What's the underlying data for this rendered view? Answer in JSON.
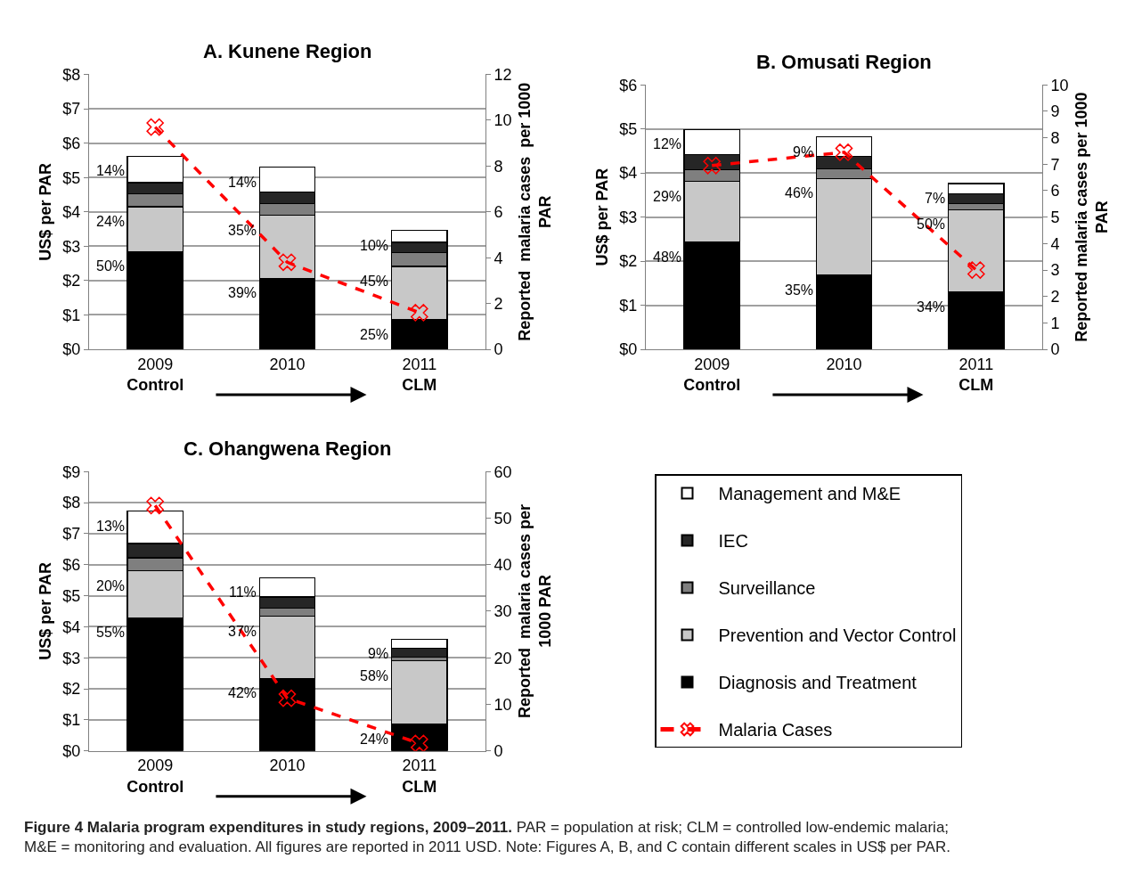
{
  "chart_data": [
    {
      "type": "bar",
      "title": "A. Kunene Region",
      "ylabel": "US$ per PAR",
      "y2label": "Reported  malaria cases  per 1000\nPAR",
      "categories": [
        "2009\nControl",
        "2010",
        "2011\nCLM"
      ],
      "stacked": true,
      "grid": "y",
      "ylim": [
        0,
        8
      ],
      "yticks": [
        {
          "value": 0,
          "label": "$0"
        },
        {
          "value": 1,
          "label": "$1"
        },
        {
          "value": 2,
          "label": "$2"
        },
        {
          "value": 3,
          "label": "$3"
        },
        {
          "value": 4,
          "label": "$4"
        },
        {
          "value": 5,
          "label": "$5"
        },
        {
          "value": 6,
          "label": "$6"
        },
        {
          "value": 7,
          "label": "$7"
        },
        {
          "value": 8,
          "label": "$8"
        }
      ],
      "y2lim": [
        0,
        12
      ],
      "y2ticks": [
        0,
        2,
        4,
        6,
        8,
        10,
        12
      ],
      "series": [
        {
          "color": "#000000",
          "values": [
            2.85,
            2.07,
            0.87
          ]
        },
        {
          "color": "#c8c8c8",
          "values": [
            1.3,
            1.83,
            1.54
          ]
        },
        {
          "color": "#7f7f7f",
          "values": [
            0.38,
            0.33,
            0.41
          ]
        },
        {
          "color": "#262626",
          "values": [
            0.32,
            0.34,
            0.29
          ]
        },
        {
          "color": "#ffffff",
          "values": [
            0.77,
            0.73,
            0.35
          ]
        },
        {
          "type": "line",
          "axis": "y2",
          "color": "#ff0000",
          "line_style": "dashed",
          "marker": "cross",
          "values": [
            9.7,
            3.8,
            1.6
          ]
        }
      ],
      "annotations": [
        {
          "text": "50%",
          "x": "2009\nControl",
          "y": 2.85
        },
        {
          "text": "24%",
          "x": "2009\nControl",
          "y": 4.15
        },
        {
          "text": "14%",
          "x": "2009\nControl",
          "y": 5.62
        },
        {
          "text": "39%",
          "x": "2010",
          "y": 2.07
        },
        {
          "text": "35%",
          "x": "2010",
          "y": 3.9
        },
        {
          "text": "14%",
          "x": "2010",
          "y": 5.3
        },
        {
          "text": "25%",
          "x": "2011\nCLM",
          "y": 0.87
        },
        {
          "text": "45%",
          "x": "2011\nCLM",
          "y": 2.41
        },
        {
          "text": "10%",
          "x": "2011\nCLM",
          "y": 3.46
        }
      ]
    },
    {
      "type": "bar",
      "title": "B. Omusati Region",
      "ylabel": "US$ per PAR",
      "y2label": "Reported malaria cases per 1000\nPAR",
      "categories": [
        "2009\nControl",
        "2010",
        "2011\nCLM"
      ],
      "stacked": true,
      "grid": "y",
      "ylim": [
        0,
        6
      ],
      "yticks": [
        {
          "value": 0,
          "label": "$0"
        },
        {
          "value": 1,
          "label": "$1"
        },
        {
          "value": 2,
          "label": "$2"
        },
        {
          "value": 3,
          "label": "$3"
        },
        {
          "value": 4,
          "label": "$4"
        },
        {
          "value": 5,
          "label": "$5"
        },
        {
          "value": 6,
          "label": "$6"
        }
      ],
      "y2lim": [
        0,
        10
      ],
      "y2ticks": [
        0,
        1,
        2,
        3,
        4,
        5,
        6,
        7,
        8,
        9,
        10
      ],
      "series": [
        {
          "color": "#000000",
          "values": [
            2.43,
            1.68,
            1.3
          ]
        },
        {
          "color": "#c8c8c8",
          "values": [
            1.38,
            2.2,
            1.87
          ]
        },
        {
          "color": "#7f7f7f",
          "values": [
            0.27,
            0.21,
            0.14
          ]
        },
        {
          "color": "#262626",
          "values": [
            0.33,
            0.28,
            0.22
          ]
        },
        {
          "color": "#ffffff",
          "values": [
            0.58,
            0.45,
            0.23
          ]
        },
        {
          "type": "line",
          "axis": "y2",
          "color": "#ff0000",
          "line_style": "dashed",
          "marker": "cross",
          "values": [
            6.95,
            7.45,
            3.0
          ]
        }
      ],
      "annotations": [
        {
          "text": "48%",
          "x": "2009\nControl",
          "y": 2.43
        },
        {
          "text": "29%",
          "x": "2009\nControl",
          "y": 3.81
        },
        {
          "text": "12%",
          "x": "2009\nControl",
          "y": 4.99
        },
        {
          "text": "35%",
          "x": "2010",
          "y": 1.68
        },
        {
          "text": "46%",
          "x": "2010",
          "y": 3.88
        },
        {
          "text": "9%",
          "x": "2010",
          "y": 4.82
        },
        {
          "text": "34%",
          "x": "2011\nCLM",
          "y": 1.3
        },
        {
          "text": "50%",
          "x": "2011\nCLM",
          "y": 3.17
        },
        {
          "text": "7%",
          "x": "2011\nCLM",
          "y": 3.76
        }
      ]
    },
    {
      "type": "bar",
      "title": "C. Ohangwena Region",
      "ylabel": "US$ per PAR",
      "y2label": "Reported  malaria cases per\n1000 PAR",
      "categories": [
        "2009\nControl",
        "2010",
        "2011\nCLM"
      ],
      "stacked": true,
      "grid": "y",
      "legend": "right",
      "ylim": [
        0,
        9
      ],
      "yticks": [
        {
          "value": 0,
          "label": "$0"
        },
        {
          "value": 1,
          "label": "$1"
        },
        {
          "value": 2,
          "label": "$2"
        },
        {
          "value": 3,
          "label": "$3"
        },
        {
          "value": 4,
          "label": "$4"
        },
        {
          "value": 5,
          "label": "$5"
        },
        {
          "value": 6,
          "label": "$6"
        },
        {
          "value": 7,
          "label": "$7"
        },
        {
          "value": 8,
          "label": "$8"
        },
        {
          "value": 9,
          "label": "$9"
        }
      ],
      "y2lim": [
        0,
        60
      ],
      "y2ticks": [
        0,
        10,
        20,
        30,
        40,
        50,
        60
      ],
      "series": [
        {
          "name": "Diagnosis and Treatment",
          "color": "#000000",
          "values": [
            4.29,
            2.34,
            0.86
          ]
        },
        {
          "name": "Prevention and Vector Control",
          "color": "#c8c8c8",
          "values": [
            1.51,
            2.0,
            2.04
          ]
        },
        {
          "name": "Surveillance",
          "color": "#7f7f7f",
          "values": [
            0.42,
            0.27,
            0.13
          ]
        },
        {
          "name": "IEC",
          "color": "#262626",
          "values": [
            0.46,
            0.35,
            0.27
          ]
        },
        {
          "name": "Management and M&E",
          "color": "#ffffff",
          "values": [
            1.04,
            0.62,
            0.3
          ]
        },
        {
          "name": "Malaria Cases",
          "type": "line",
          "axis": "y2",
          "color": "#ff0000",
          "line_style": "dashed",
          "marker": "cross",
          "values": [
            52.7,
            11.3,
            1.6
          ]
        }
      ],
      "annotations": [
        {
          "text": "55%",
          "x": "2009\nControl",
          "y": 4.29
        },
        {
          "text": "20%",
          "x": "2009\nControl",
          "y": 5.8
        },
        {
          "text": "13%",
          "x": "2009\nControl",
          "y": 7.72
        },
        {
          "text": "42%",
          "x": "2010",
          "y": 2.34
        },
        {
          "text": "37%",
          "x": "2010",
          "y": 4.34
        },
        {
          "text": "11%",
          "x": "2010",
          "y": 5.58
        },
        {
          "text": "24%",
          "x": "2011\nCLM",
          "y": 0.86
        },
        {
          "text": "58%",
          "x": "2011\nCLM",
          "y": 2.9
        },
        {
          "text": "9%",
          "x": "2011\nCLM",
          "y": 3.6
        },
        "Figure 4 Malaria program expenditures in study regions, 2009–2011.",
        "PAR = population at risk; CLM = controlled low-endemic malaria;\nM&E = monitoring and evaluation. All figures are reported in 2011 USD. Note: Figures A, B, and C contain different scales in US$ per PAR."
      ]
    }
  ]
}
